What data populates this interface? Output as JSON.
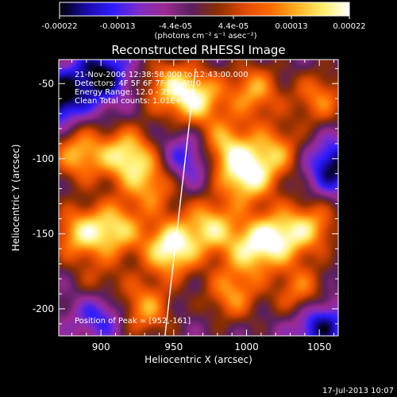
{
  "chart_data": {
    "type": "heatmap",
    "title": "Reconstructed RHESSI Image",
    "xlabel": "Heliocentric X (arcsec)",
    "ylabel": "Heliocentric Y (arcsec)",
    "xlim": [
      871,
      1063
    ],
    "ylim": [
      -218,
      -34
    ],
    "xticks": [
      900,
      950,
      1000,
      1050
    ],
    "yticks": [
      -50,
      -100,
      -150,
      -200
    ],
    "colorbar": {
      "min": -0.00022,
      "max": 0.00022,
      "ticks": [
        "-0.00022",
        "-0.00013",
        "-4.4e-05",
        "4.4e-05",
        "0.00013",
        "0.00022"
      ],
      "units_line": "(photons cm⁻² s⁻¹ asec⁻²)",
      "colormap": [
        "#000000",
        "#1a0aa8",
        "#2e1cff",
        "#7d2cc8",
        "#9b2a90",
        "#5a2060",
        "#8a2e00",
        "#e04800",
        "#ff6a00",
        "#ffb020",
        "#ffef6a",
        "#ffffff"
      ]
    },
    "annotations": [
      "21-Nov-2006 12:38:58.000 to 12:43:00.000",
      "Detectors: 4F 5F 6F 7F 8F, Att 0",
      "Energy Range: 12.0 - 25.0 keV",
      "Clean    Total counts: 1.01E+04"
    ],
    "peak_text": "Position of Peak = [952,-161]",
    "limb_line": [
      [
        944,
        -218
      ],
      [
        965,
        -40
      ]
    ],
    "sources": [
      {
        "x": 946,
        "y": -52,
        "v": 0.6
      },
      {
        "x": 966,
        "y": -60,
        "v": 0.8
      },
      {
        "x": 1005,
        "y": -55,
        "v": 0.65
      },
      {
        "x": 1050,
        "y": -60,
        "v": 0.55
      },
      {
        "x": 885,
        "y": -97,
        "v": 0.7
      },
      {
        "x": 918,
        "y": -98,
        "v": 0.85
      },
      {
        "x": 935,
        "y": -118,
        "v": 0.6
      },
      {
        "x": 1000,
        "y": -112,
        "v": 0.9
      },
      {
        "x": 985,
        "y": -92,
        "v": 0.7
      },
      {
        "x": 1020,
        "y": -95,
        "v": 0.6
      },
      {
        "x": 885,
        "y": -150,
        "v": 0.7
      },
      {
        "x": 910,
        "y": -147,
        "v": 0.75
      },
      {
        "x": 948,
        "y": -160,
        "v": 1.0
      },
      {
        "x": 975,
        "y": -145,
        "v": 0.75
      },
      {
        "x": 1003,
        "y": -160,
        "v": 0.7
      },
      {
        "x": 1022,
        "y": -152,
        "v": 0.75
      },
      {
        "x": 1045,
        "y": -145,
        "v": 0.6
      },
      {
        "x": 900,
        "y": -188,
        "v": 0.55
      },
      {
        "x": 930,
        "y": -200,
        "v": 0.65
      },
      {
        "x": 990,
        "y": -190,
        "v": 0.6
      },
      {
        "x": 1038,
        "y": -190,
        "v": 0.6
      }
    ],
    "sinks": [
      {
        "x": 900,
        "y": -45,
        "v": 0.75
      },
      {
        "x": 870,
        "y": -60,
        "v": 0.8
      },
      {
        "x": 1060,
        "y": -105,
        "v": 0.7
      },
      {
        "x": 960,
        "y": -100,
        "v": 0.5
      },
      {
        "x": 900,
        "y": -200,
        "v": 0.7
      },
      {
        "x": 1050,
        "y": -210,
        "v": 0.7
      }
    ]
  },
  "footer": {
    "timestamp": "17-Jul-2013 10:07"
  }
}
